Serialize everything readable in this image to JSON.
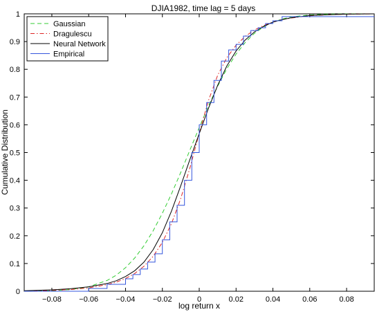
{
  "chart_data": {
    "type": "line",
    "title": "DJIA1982, time lag = 5 days",
    "xlabel": "log return x",
    "ylabel": "Cumulative Distribution",
    "xlim": [
      -0.095,
      0.095
    ],
    "ylim": [
      0,
      1
    ],
    "xticks": [
      -0.08,
      -0.06,
      -0.04,
      -0.02,
      0,
      0.02,
      0.04,
      0.06,
      0.08
    ],
    "xtick_labels": [
      "−0.08",
      "−0.06",
      "−0.04",
      "−0.02",
      "0",
      "0.02",
      "0.04",
      "0.06",
      "0.08"
    ],
    "yticks": [
      0,
      0.1,
      0.2,
      0.3,
      0.4,
      0.5,
      0.6,
      0.7,
      0.8,
      0.9,
      1
    ],
    "ytick_labels": [
      "0",
      "0.1",
      "0.2",
      "0.3",
      "0.4",
      "0.5",
      "0.6",
      "0.7",
      "0.8",
      "0.9",
      "1"
    ],
    "grid": false,
    "legend_position": "top-left",
    "series": [
      {
        "name": "Gaussian",
        "color": "#33cc33",
        "dash": "dashed",
        "x": [
          -0.095,
          -0.08,
          -0.07,
          -0.06,
          -0.05,
          -0.045,
          -0.04,
          -0.035,
          -0.03,
          -0.025,
          -0.02,
          -0.015,
          -0.01,
          -0.005,
          0,
          0.005,
          0.01,
          0.015,
          0.02,
          0.025,
          0.03,
          0.035,
          0.04,
          0.045,
          0.05,
          0.06,
          0.07,
          0.08,
          0.095
        ],
        "y": [
          0.0,
          0.002,
          0.006,
          0.016,
          0.039,
          0.058,
          0.085,
          0.12,
          0.164,
          0.218,
          0.281,
          0.352,
          0.429,
          0.51,
          0.59,
          0.668,
          0.739,
          0.802,
          0.855,
          0.897,
          0.93,
          0.953,
          0.97,
          0.981,
          0.989,
          0.996,
          0.999,
          1.0,
          1.0
        ]
      },
      {
        "name": "Dragulescu",
        "color": "#dd2222",
        "dash": "dashdot",
        "x": [
          -0.095,
          -0.08,
          -0.07,
          -0.06,
          -0.05,
          -0.045,
          -0.04,
          -0.035,
          -0.03,
          -0.025,
          -0.02,
          -0.015,
          -0.01,
          -0.005,
          0,
          0.005,
          0.01,
          0.015,
          0.02,
          0.025,
          0.03,
          0.035,
          0.04,
          0.045,
          0.05,
          0.06,
          0.07,
          0.08,
          0.095
        ],
        "y": [
          0.001,
          0.003,
          0.006,
          0.012,
          0.024,
          0.033,
          0.046,
          0.064,
          0.09,
          0.126,
          0.176,
          0.245,
          0.335,
          0.446,
          0.57,
          0.687,
          0.778,
          0.842,
          0.887,
          0.919,
          0.942,
          0.958,
          0.97,
          0.979,
          0.985,
          0.993,
          0.997,
          0.999,
          1.0
        ]
      },
      {
        "name": "Neural Network",
        "color": "#000000",
        "dash": "solid",
        "x": [
          -0.095,
          -0.08,
          -0.07,
          -0.06,
          -0.05,
          -0.045,
          -0.04,
          -0.035,
          -0.03,
          -0.025,
          -0.02,
          -0.015,
          -0.01,
          -0.005,
          0,
          0.005,
          0.01,
          0.015,
          0.02,
          0.025,
          0.03,
          0.035,
          0.04,
          0.045,
          0.05,
          0.06,
          0.07,
          0.08,
          0.095
        ],
        "y": [
          0.002,
          0.005,
          0.009,
          0.016,
          0.028,
          0.038,
          0.053,
          0.074,
          0.105,
          0.15,
          0.211,
          0.29,
          0.381,
          0.476,
          0.568,
          0.659,
          0.742,
          0.812,
          0.866,
          0.906,
          0.935,
          0.955,
          0.97,
          0.979,
          0.986,
          0.994,
          0.997,
          0.999,
          1.0
        ]
      },
      {
        "name": "Empirical",
        "color": "#3355dd",
        "dash": "solid",
        "step": true,
        "x": [
          -0.095,
          -0.06,
          -0.05,
          -0.04,
          -0.036,
          -0.032,
          -0.028,
          -0.024,
          -0.02,
          -0.016,
          -0.012,
          -0.008,
          -0.004,
          0,
          0.004,
          0.008,
          0.012,
          0.016,
          0.02,
          0.024,
          0.028,
          0.032,
          0.036,
          0.04,
          0.045,
          0.095
        ],
        "y": [
          0.0,
          0.01,
          0.025,
          0.045,
          0.06,
          0.08,
          0.105,
          0.135,
          0.185,
          0.25,
          0.31,
          0.4,
          0.5,
          0.6,
          0.68,
          0.76,
          0.83,
          0.87,
          0.89,
          0.92,
          0.94,
          0.95,
          0.965,
          0.975,
          0.99,
          0.99
        ]
      }
    ]
  }
}
